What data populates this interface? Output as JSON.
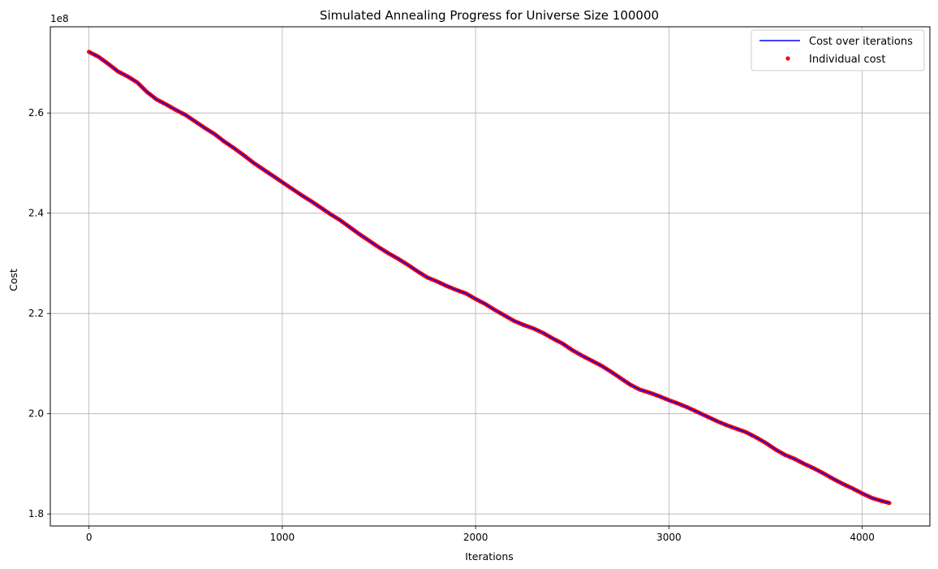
{
  "chart_data": {
    "type": "line",
    "title": "Simulated Annealing Progress for Universe Size 100000",
    "xlabel": "Iterations",
    "ylabel": "Cost",
    "y_offset_label": "1e8",
    "xlim": [
      -200,
      4350
    ],
    "ylim": [
      1.776,
      2.772
    ],
    "x_ticks": [
      0,
      1000,
      2000,
      3000,
      4000
    ],
    "y_ticks": [
      1.8,
      2.0,
      2.2,
      2.4,
      2.6
    ],
    "y_tick_labels": [
      "1.8",
      "2.0",
      "2.2",
      "2.4",
      "2.6"
    ],
    "grid": true,
    "legend_position": "top-right",
    "series": [
      {
        "name": "Cost over iterations",
        "kind": "line",
        "color": "#0000ff",
        "x": [
          0,
          50,
          100,
          150,
          200,
          250,
          300,
          350,
          400,
          450,
          500,
          550,
          600,
          650,
          700,
          750,
          800,
          850,
          900,
          950,
          1000,
          1050,
          1100,
          1150,
          1200,
          1250,
          1300,
          1350,
          1400,
          1450,
          1500,
          1550,
          1600,
          1650,
          1700,
          1750,
          1800,
          1850,
          1900,
          1950,
          2000,
          2050,
          2100,
          2150,
          2200,
          2250,
          2300,
          2350,
          2400,
          2450,
          2500,
          2550,
          2600,
          2650,
          2700,
          2750,
          2800,
          2850,
          2900,
          2950,
          3000,
          3050,
          3100,
          3150,
          3200,
          3250,
          3300,
          3350,
          3400,
          3450,
          3500,
          3550,
          3600,
          3650,
          3700,
          3750,
          3800,
          3850,
          3900,
          3950,
          4000,
          4050,
          4100,
          4140
        ],
        "y": [
          2.722,
          2.712,
          2.698,
          2.683,
          2.673,
          2.661,
          2.642,
          2.627,
          2.617,
          2.606,
          2.596,
          2.583,
          2.57,
          2.558,
          2.543,
          2.53,
          2.516,
          2.501,
          2.488,
          2.475,
          2.462,
          2.449,
          2.436,
          2.424,
          2.411,
          2.398,
          2.386,
          2.372,
          2.358,
          2.345,
          2.332,
          2.32,
          2.309,
          2.297,
          2.284,
          2.272,
          2.264,
          2.255,
          2.247,
          2.24,
          2.229,
          2.219,
          2.207,
          2.196,
          2.185,
          2.177,
          2.17,
          2.161,
          2.15,
          2.14,
          2.127,
          2.116,
          2.106,
          2.096,
          2.084,
          2.071,
          2.058,
          2.048,
          2.042,
          2.035,
          2.027,
          2.02,
          2.012,
          2.003,
          1.994,
          1.985,
          1.977,
          1.97,
          1.963,
          1.953,
          1.942,
          1.929,
          1.918,
          1.91,
          1.9,
          1.891,
          1.881,
          1.87,
          1.86,
          1.851,
          1.841,
          1.832,
          1.826,
          1.822
        ]
      },
      {
        "name": "Individual cost",
        "kind": "scatter",
        "color": "#ff0000"
      }
    ]
  }
}
